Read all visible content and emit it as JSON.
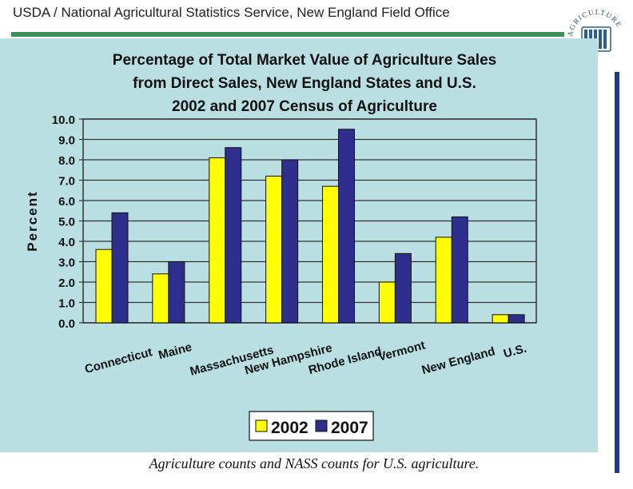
{
  "header": {
    "text": "USDA / National Agricultural Statistics Service, New England Field Office",
    "accent_color": "#3f8f5a",
    "logo_text": "AGRICULTURE"
  },
  "caption": "Agriculture counts and NASS counts for U.S. agriculture.",
  "chart_data": {
    "type": "bar",
    "title_lines": [
      "Percentage of Total Market Value of Agriculture Sales",
      "from Direct Sales, New England States and U.S.",
      "2002 and 2007 Census of Agriculture"
    ],
    "ylabel": "Percent",
    "xlabel": "",
    "ylim": [
      0,
      10
    ],
    "ytick_labels": [
      "0.0",
      "1.0",
      "2.0",
      "3.0",
      "4.0",
      "5.0",
      "6.0",
      "7.0",
      "8.0",
      "9.0",
      "10.0"
    ],
    "grid": true,
    "legend_position": "bottom-center",
    "categories": [
      "Connecticut",
      "Maine",
      "Massachusetts",
      "New Hampshire",
      "Rhode Island",
      "Vermont",
      "New England",
      "U.S."
    ],
    "series": [
      {
        "name": "2002",
        "color": "#ffff00",
        "values": [
          3.6,
          2.4,
          8.1,
          7.2,
          6.7,
          2.0,
          4.2,
          0.4
        ]
      },
      {
        "name": "2007",
        "color": "#2e2e8c",
        "values": [
          5.4,
          3.0,
          8.6,
          8.0,
          9.5,
          3.4,
          5.2,
          0.4
        ]
      }
    ]
  }
}
